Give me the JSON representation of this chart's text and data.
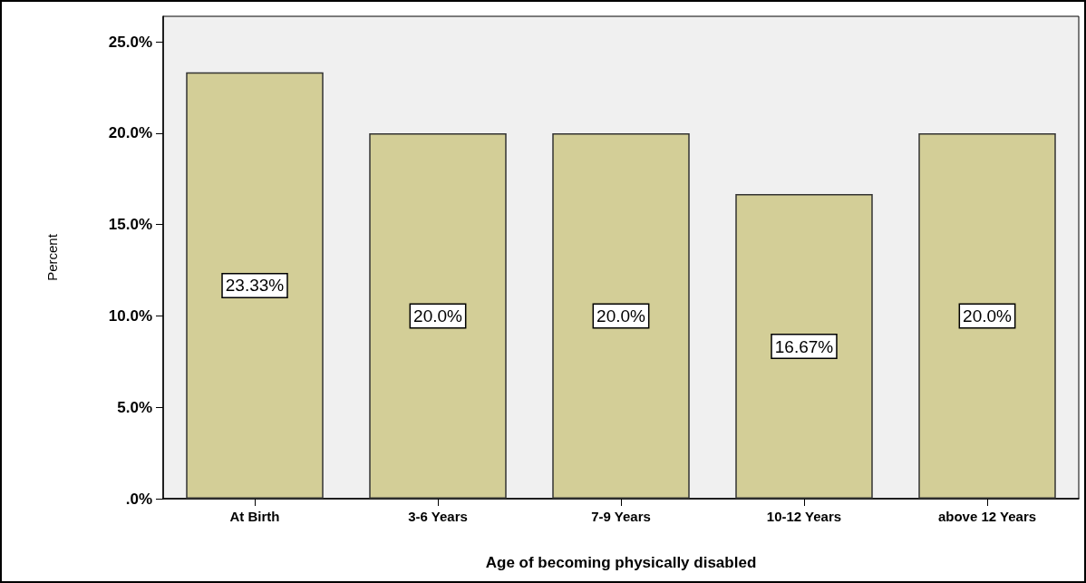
{
  "chart_data": {
    "type": "bar",
    "xlabel": "Age of becoming physically disabled",
    "ylabel": "Percent",
    "categories": [
      "At Birth",
      "3-6 Years",
      "7-9 Years",
      "10-12 Years",
      "above 12 Years"
    ],
    "values": [
      23.33,
      20.0,
      20.0,
      16.67,
      20.0
    ],
    "value_labels": [
      "23.33%",
      "20.0%",
      "20.0%",
      "16.67%",
      "20.0%"
    ],
    "color": "#d3ce97",
    "ylim": [
      0,
      26.4
    ],
    "yticks": [
      {
        "value": 0,
        "label": ".0%"
      },
      {
        "value": 5,
        "label": "5.0%"
      },
      {
        "value": 10,
        "label": "10.0%"
      },
      {
        "value": 15,
        "label": "15.0%"
      },
      {
        "value": 20,
        "label": "20.0%"
      },
      {
        "value": 25,
        "label": "25.0%"
      }
    ],
    "grid": false
  }
}
